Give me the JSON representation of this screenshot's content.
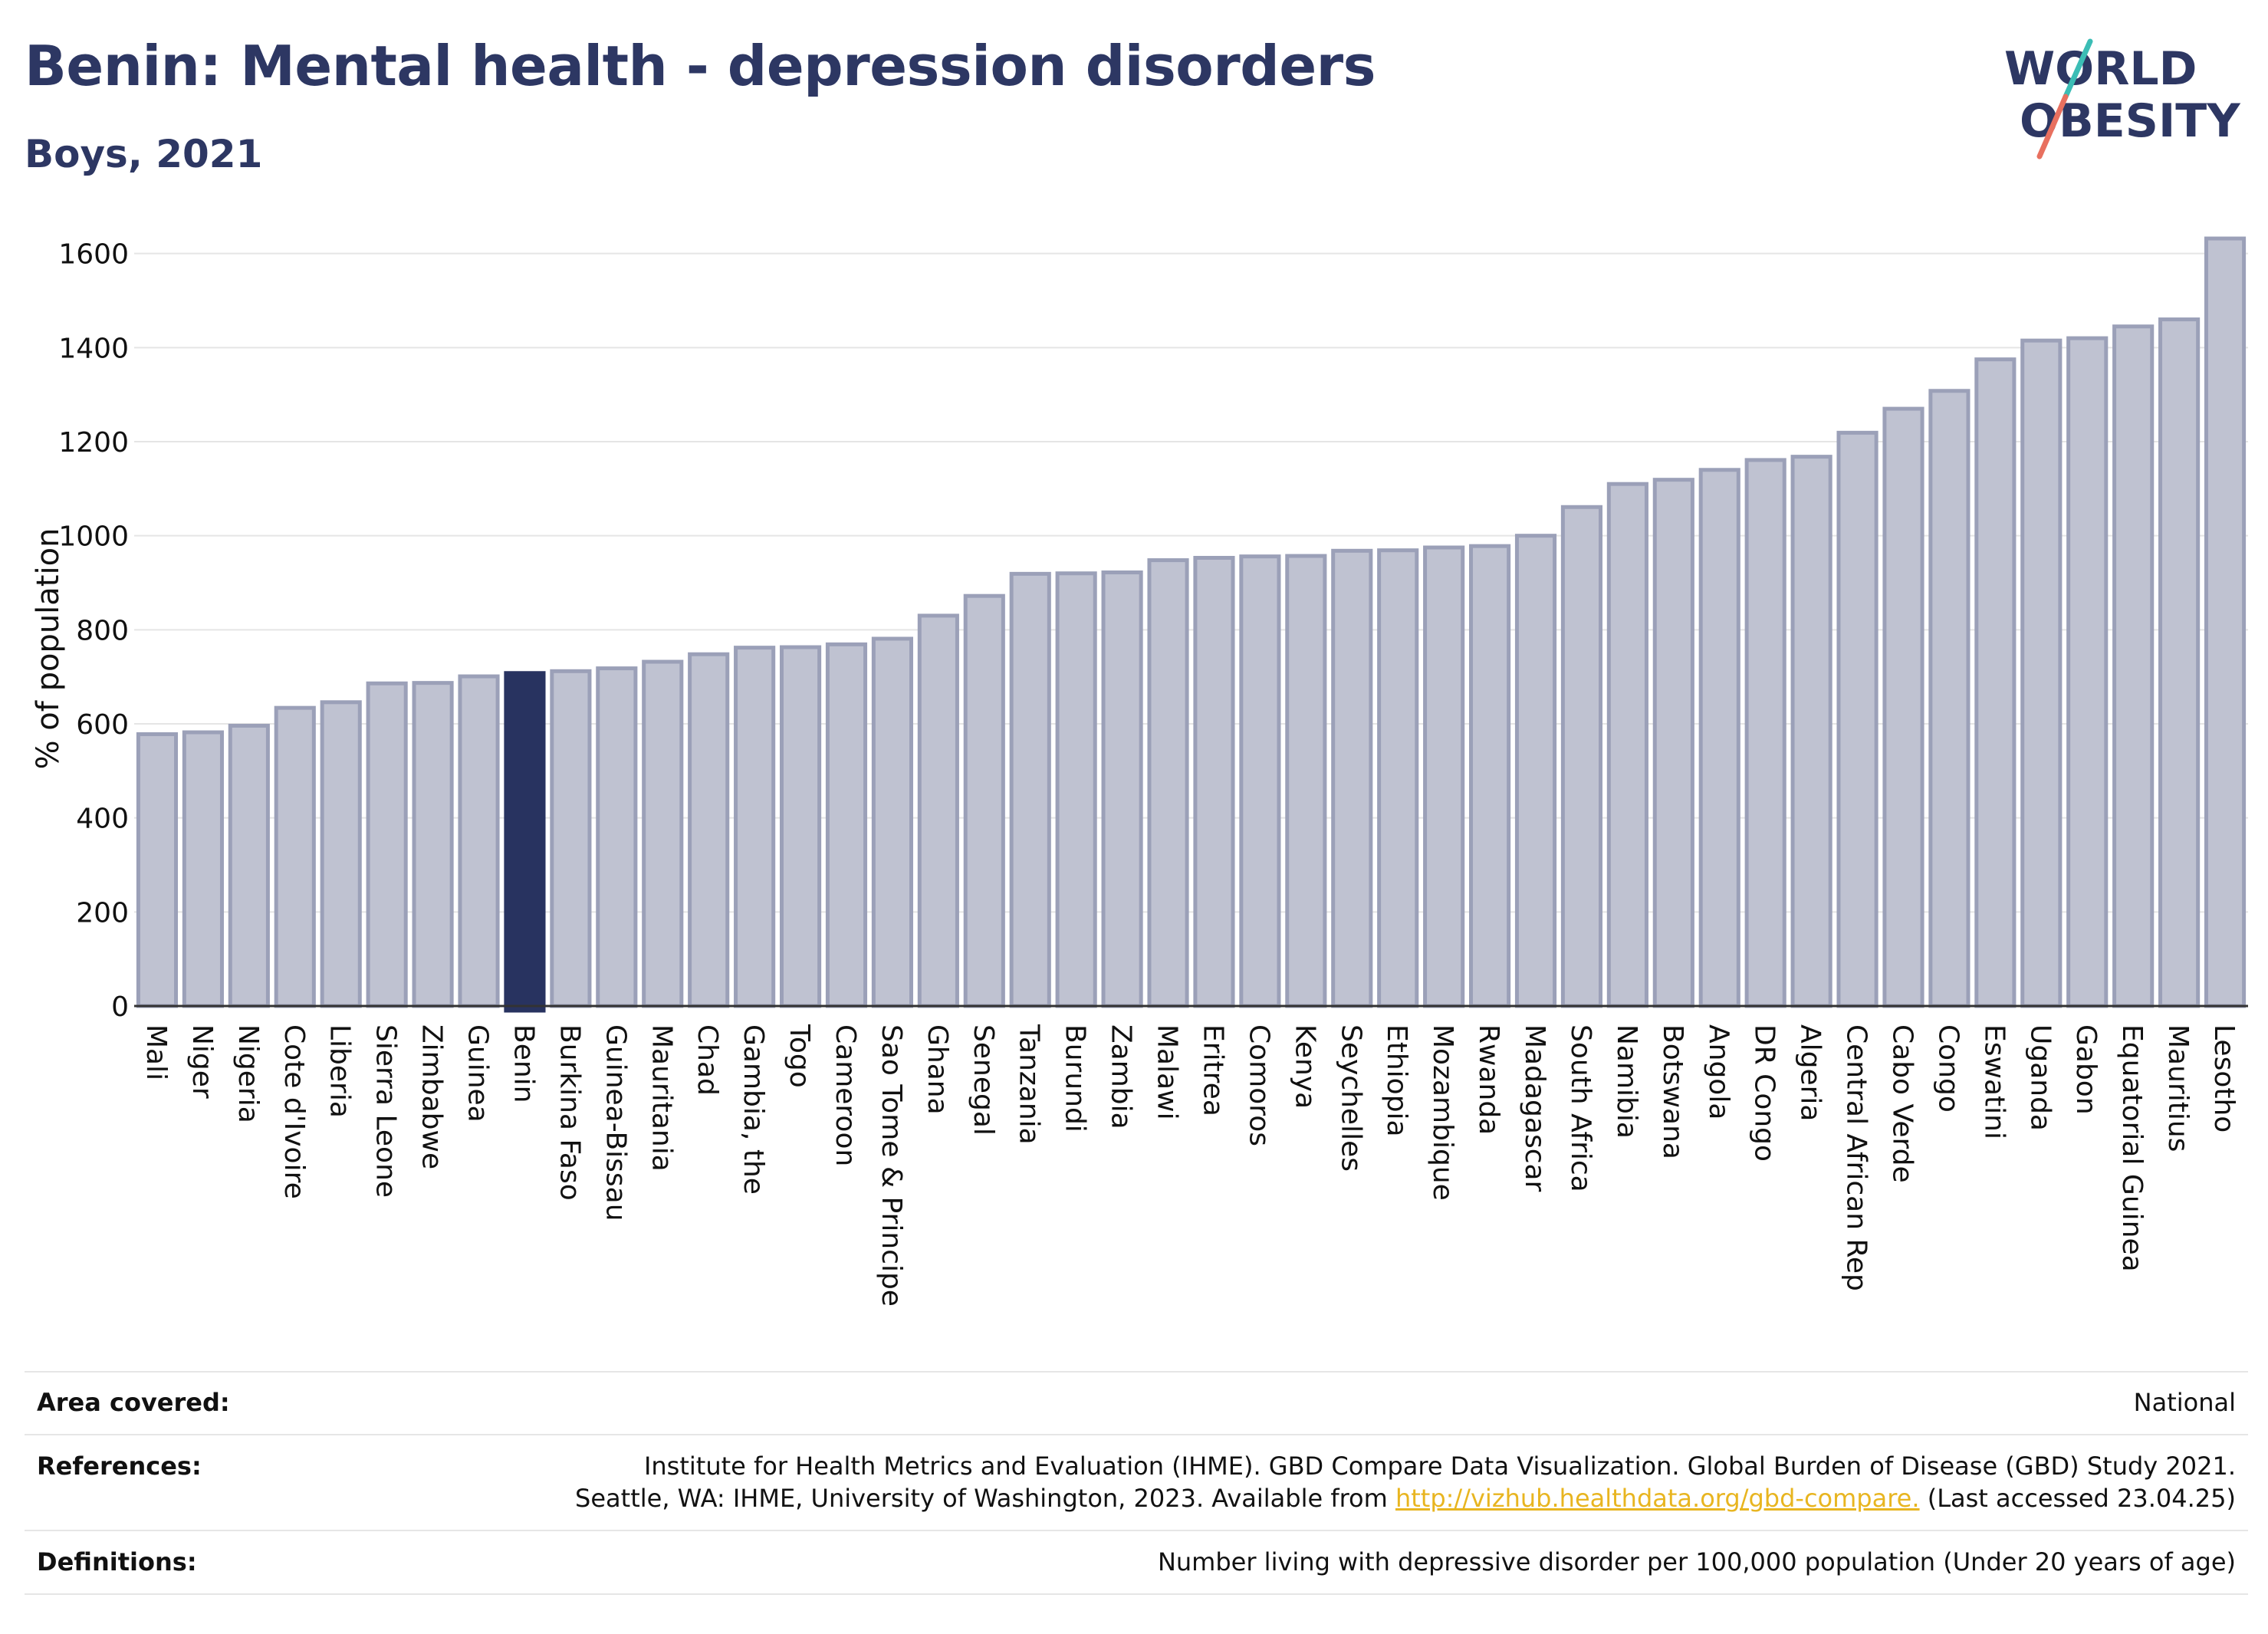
{
  "header": {
    "title": "Benin: Mental health - depression disorders",
    "subtitle": "Boys, 2021"
  },
  "logo": {
    "line1": "WORLD",
    "line2": "OBESITY",
    "name": "world-obesity-logo"
  },
  "colors": {
    "highlight": "#283360",
    "bar_fill": "#bfc2d1",
    "bar_edge": "#9ba0b8",
    "text": "#2d3763",
    "link": "#e8b520"
  },
  "chart_data": {
    "type": "bar",
    "title": "Benin: Mental health - depression disorders",
    "subtitle": "Boys, 2021",
    "xlabel": "",
    "ylabel": "% of population",
    "ylim": [
      0,
      1650
    ],
    "yticks": [
      0,
      200,
      400,
      600,
      800,
      1000,
      1200,
      1400,
      1600
    ],
    "grid": true,
    "highlight": "Benin",
    "categories": [
      "Mali",
      "Niger",
      "Nigeria",
      "Cote d'Ivoire",
      "Liberia",
      "Sierra Leone",
      "Zimbabwe",
      "Guinea",
      "Benin",
      "Burkina Faso",
      "Guinea-Bissau",
      "Mauritania",
      "Chad",
      "Gambia, the",
      "Togo",
      "Cameroon",
      "Sao Tome & Principe",
      "Ghana",
      "Senegal",
      "Tanzania",
      "Burundi",
      "Zambia",
      "Malawi",
      "Eritrea",
      "Comoros",
      "Kenya",
      "Seychelles",
      "Ethiopia",
      "Mozambique",
      "Rwanda",
      "Madagascar",
      "South Africa",
      "Namibia",
      "Botswana",
      "Angola",
      "DR Congo",
      "Algeria",
      "Central African Rep",
      "Cabo Verde",
      "Congo",
      "Eswatini",
      "Uganda",
      "Gabon",
      "Equatorial Guinea",
      "Mauritius",
      "Lesotho"
    ],
    "values": [
      578,
      582,
      596,
      634,
      646,
      686,
      687,
      701,
      708,
      712,
      718,
      732,
      748,
      762,
      763,
      769,
      781,
      830,
      872,
      919,
      920,
      922,
      948,
      953,
      956,
      957,
      968,
      969,
      975,
      978,
      1000,
      1061,
      1110,
      1119,
      1140,
      1161,
      1168,
      1219,
      1270,
      1308,
      1375,
      1415,
      1420,
      1445,
      1460,
      1632
    ]
  },
  "meta": {
    "area_label": "Area covered:",
    "area_value": "National",
    "references_label": "References:",
    "references_line1": "Institute for Health Metrics and Evaluation (IHME). GBD Compare Data Visualization. Global Burden of Disease (GBD) Study 2021.",
    "references_line2_pre": "Seattle, WA: IHME, University of Washington, 2023. Available from ",
    "references_link": "http://vizhub.healthdata.org/gbd-compare.",
    "references_line2_post": " (Last accessed 23.04.25)",
    "definitions_label": "Definitions:",
    "definitions_value": "Number living with depressive disorder per 100,000 population (Under 20 years of age)"
  }
}
